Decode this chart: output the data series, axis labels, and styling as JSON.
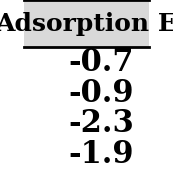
{
  "title": "Adsorption E",
  "values": [
    "-0.7",
    "-0.9",
    "-2.3",
    "-1.9"
  ],
  "bg_color": "#ffffff",
  "header_bg": "#d9d9d9",
  "font_size_title": 18,
  "font_size_values": 22,
  "text_color": "#000000",
  "border_color": "#000000"
}
